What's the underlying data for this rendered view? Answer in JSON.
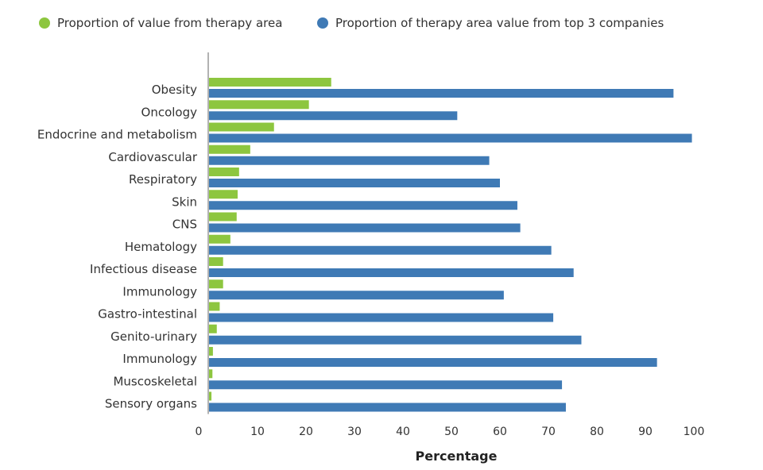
{
  "chart_data": {
    "type": "bar",
    "orientation": "horizontal",
    "title": "",
    "xlabel": "Percentage",
    "ylabel": "",
    "xlim": [
      0,
      100
    ],
    "xticks": [
      0,
      10,
      20,
      30,
      40,
      50,
      60,
      70,
      80,
      90,
      100
    ],
    "grid": false,
    "legend_position": "top-left",
    "categories": [
      "Obesity",
      "Oncology",
      "Endocrine and metabolism",
      "Cardiovascular",
      "Respiratory",
      "Skin",
      "CNS",
      "Hematology",
      "Infectious disease",
      "Immunology",
      "Gastro-intestinal",
      "Genito-urinary",
      "Immunology",
      "Muscoskeletal",
      "Sensory organs"
    ],
    "series": [
      {
        "name": "Proportion of value from therapy area",
        "color": "#8dc63f",
        "values": [
          25.2,
          20.6,
          13.4,
          8.5,
          6.2,
          5.9,
          5.7,
          4.4,
          2.9,
          2.9,
          2.2,
          1.6,
          0.8,
          0.7,
          0.5
        ]
      },
      {
        "name": "Proportion of therapy area value from top 3 companies",
        "color": "#3f7ab5",
        "values": [
          95.8,
          51.2,
          99.6,
          57.8,
          60.0,
          63.6,
          64.2,
          70.6,
          75.2,
          60.8,
          71.0,
          76.8,
          92.4,
          72.8,
          73.6
        ]
      }
    ]
  }
}
